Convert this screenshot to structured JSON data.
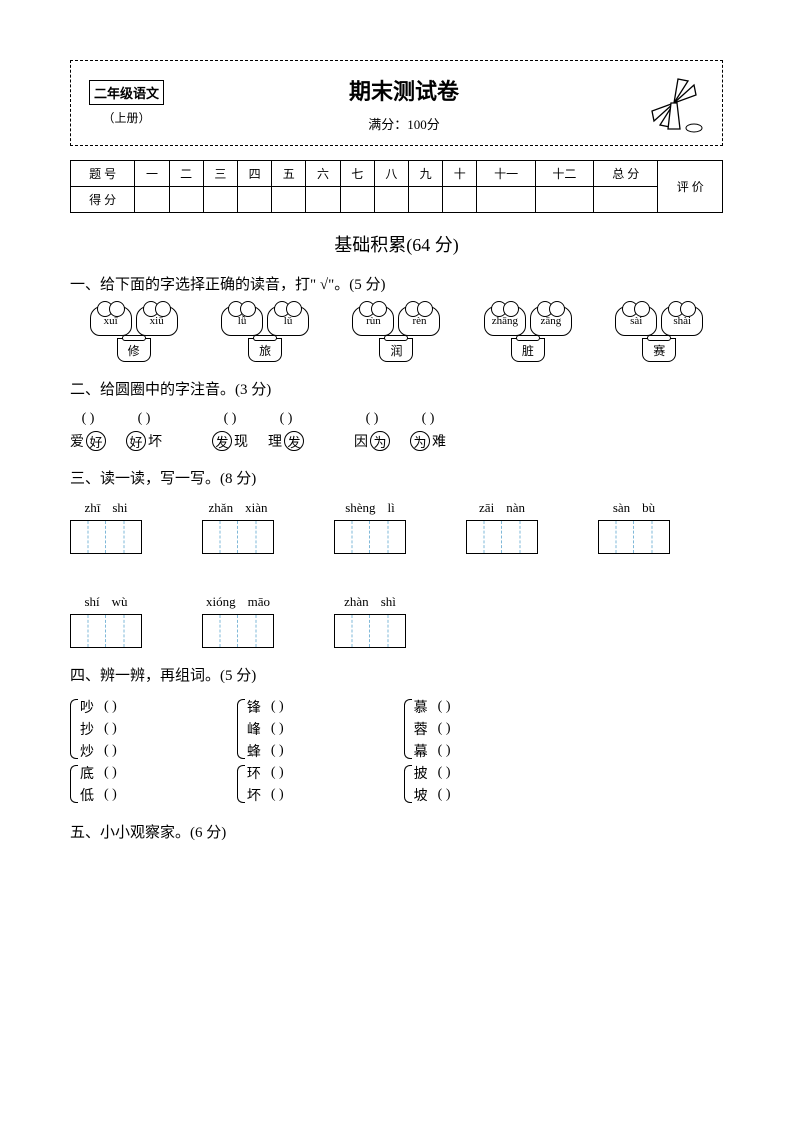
{
  "header": {
    "grade": "二年级语文",
    "volume": "（上册）",
    "title": "期末测试卷",
    "full_score": "满分：100分"
  },
  "score_table": {
    "row1_label": "题 号",
    "cols": [
      "一",
      "二",
      "三",
      "四",
      "五",
      "六",
      "七",
      "八",
      "九",
      "十",
      "十一",
      "十二",
      "总 分",
      "评 价"
    ],
    "row2_label": "得 分"
  },
  "main_section": "基础积累(64 分)",
  "q1": {
    "title": "一、给下面的字选择正确的读音，打\" √\"。(5 分)",
    "pairs": [
      {
        "opts": [
          "xuī",
          "xiū"
        ],
        "char": "修"
      },
      {
        "opts": [
          "lǚ",
          "lǔ"
        ],
        "char": "旅"
      },
      {
        "opts": [
          "rùn",
          "rèn"
        ],
        "char": "润"
      },
      {
        "opts": [
          "zhāng",
          "zāng"
        ],
        "char": "脏"
      },
      {
        "opts": [
          "sài",
          "shài"
        ],
        "char": "赛"
      }
    ]
  },
  "q2": {
    "title": "二、给圆圈中的字注音。(3 分)",
    "groups": [
      [
        {
          "pre": "爱",
          "circ": "好",
          "post": ""
        },
        {
          "pre": "",
          "circ": "好",
          "post": "坏"
        }
      ],
      [
        {
          "pre": "",
          "circ": "发",
          "post": "现"
        },
        {
          "pre": "理",
          "circ": "发",
          "post": ""
        }
      ],
      [
        {
          "pre": "因",
          "circ": "为",
          "post": ""
        },
        {
          "pre": "",
          "circ": "为",
          "post": "难"
        }
      ]
    ]
  },
  "q3": {
    "title": "三、读一读，写一写。(8 分)",
    "items": [
      [
        "zhī",
        "shi"
      ],
      [
        "zhǎn",
        "xiàn"
      ],
      [
        "shèng",
        "lì"
      ],
      [
        "zāi",
        "nàn"
      ],
      [
        "sàn",
        "bù"
      ],
      [
        "shí",
        "wù"
      ],
      [
        "xióng",
        "māo"
      ],
      [
        "zhàn",
        "shì"
      ]
    ]
  },
  "q4": {
    "title": "四、辨一辨，再组词。(5 分)",
    "blank": "(            )",
    "groups": [
      [
        [
          "吵",
          "抄",
          "炒"
        ],
        [
          "锋",
          "峰",
          "蜂"
        ],
        [
          "慕",
          "蓉",
          "幕"
        ]
      ],
      [
        [
          "底",
          "低"
        ],
        [
          "环",
          "坏"
        ],
        [
          "披",
          "坡"
        ]
      ]
    ]
  },
  "q5": {
    "title": "五、小小观察家。(6 分)"
  }
}
